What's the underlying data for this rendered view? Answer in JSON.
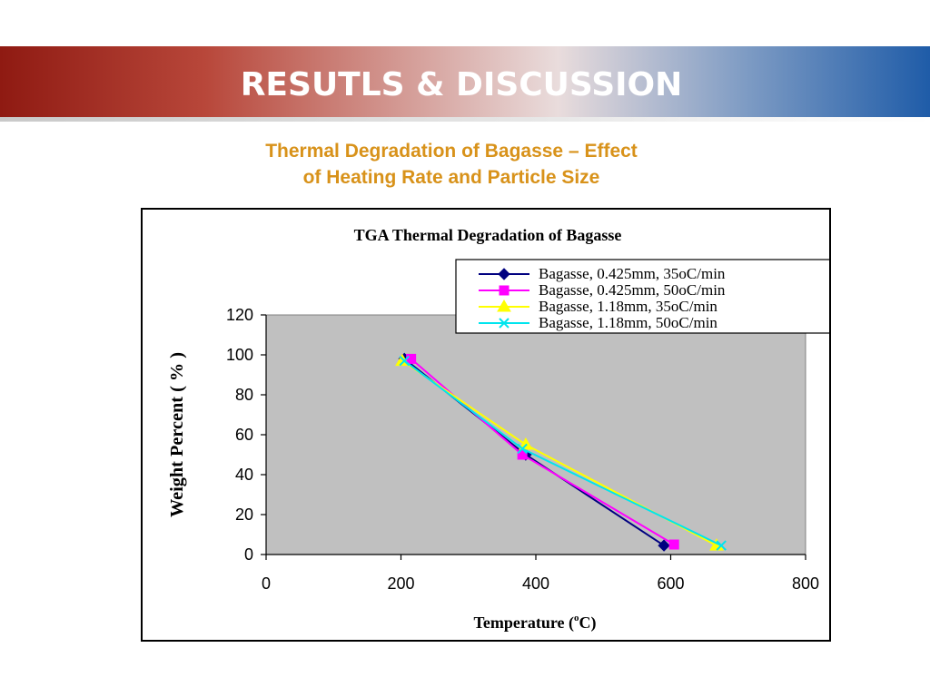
{
  "slide": {
    "title": "RESUTLS & DISCUSSION",
    "subtitle_line1": "Thermal Degradation of Bagasse – Effect",
    "subtitle_line2": "of Heating Rate and Particle Size"
  },
  "chart_data": {
    "type": "line",
    "title": "TGA Thermal Degradation of Bagasse",
    "xlabel_main": "Temperature (",
    "xlabel_sup": "o",
    "xlabel_end": "C)",
    "ylabel": "Weight Percent ( % )",
    "xlim": [
      0,
      800
    ],
    "ylim": [
      0,
      120
    ],
    "x_ticks": [
      "0",
      "200",
      "400",
      "600",
      "800"
    ],
    "y_ticks": [
      "0",
      "20",
      "40",
      "60",
      "80",
      "100",
      "120"
    ],
    "plot_background": "#c0c0c0",
    "grid": false,
    "legend_position": "top-right",
    "series": [
      {
        "name": "Bagasse, 0.425mm, 35oC/min",
        "color": "#000080",
        "marker": "diamond",
        "x": [
          205,
          385,
          590
        ],
        "y": [
          98,
          50,
          4.5
        ]
      },
      {
        "name": "Bagasse, 0.425mm, 50oC/min",
        "color": "#ff00ff",
        "marker": "square",
        "x": [
          215,
          380,
          605
        ],
        "y": [
          98,
          50,
          5
        ]
      },
      {
        "name": "Bagasse, 1.18mm, 35oC/min",
        "color": "#ffff00",
        "marker": "triangle",
        "x": [
          202,
          385,
          668
        ],
        "y": [
          97,
          55,
          4.5
        ]
      },
      {
        "name": "Bagasse, 1.18mm, 50oC/min",
        "color": "#00e5ee",
        "marker": "x",
        "x": [
          205,
          380,
          675
        ],
        "y": [
          97,
          53,
          4.5
        ]
      }
    ]
  }
}
